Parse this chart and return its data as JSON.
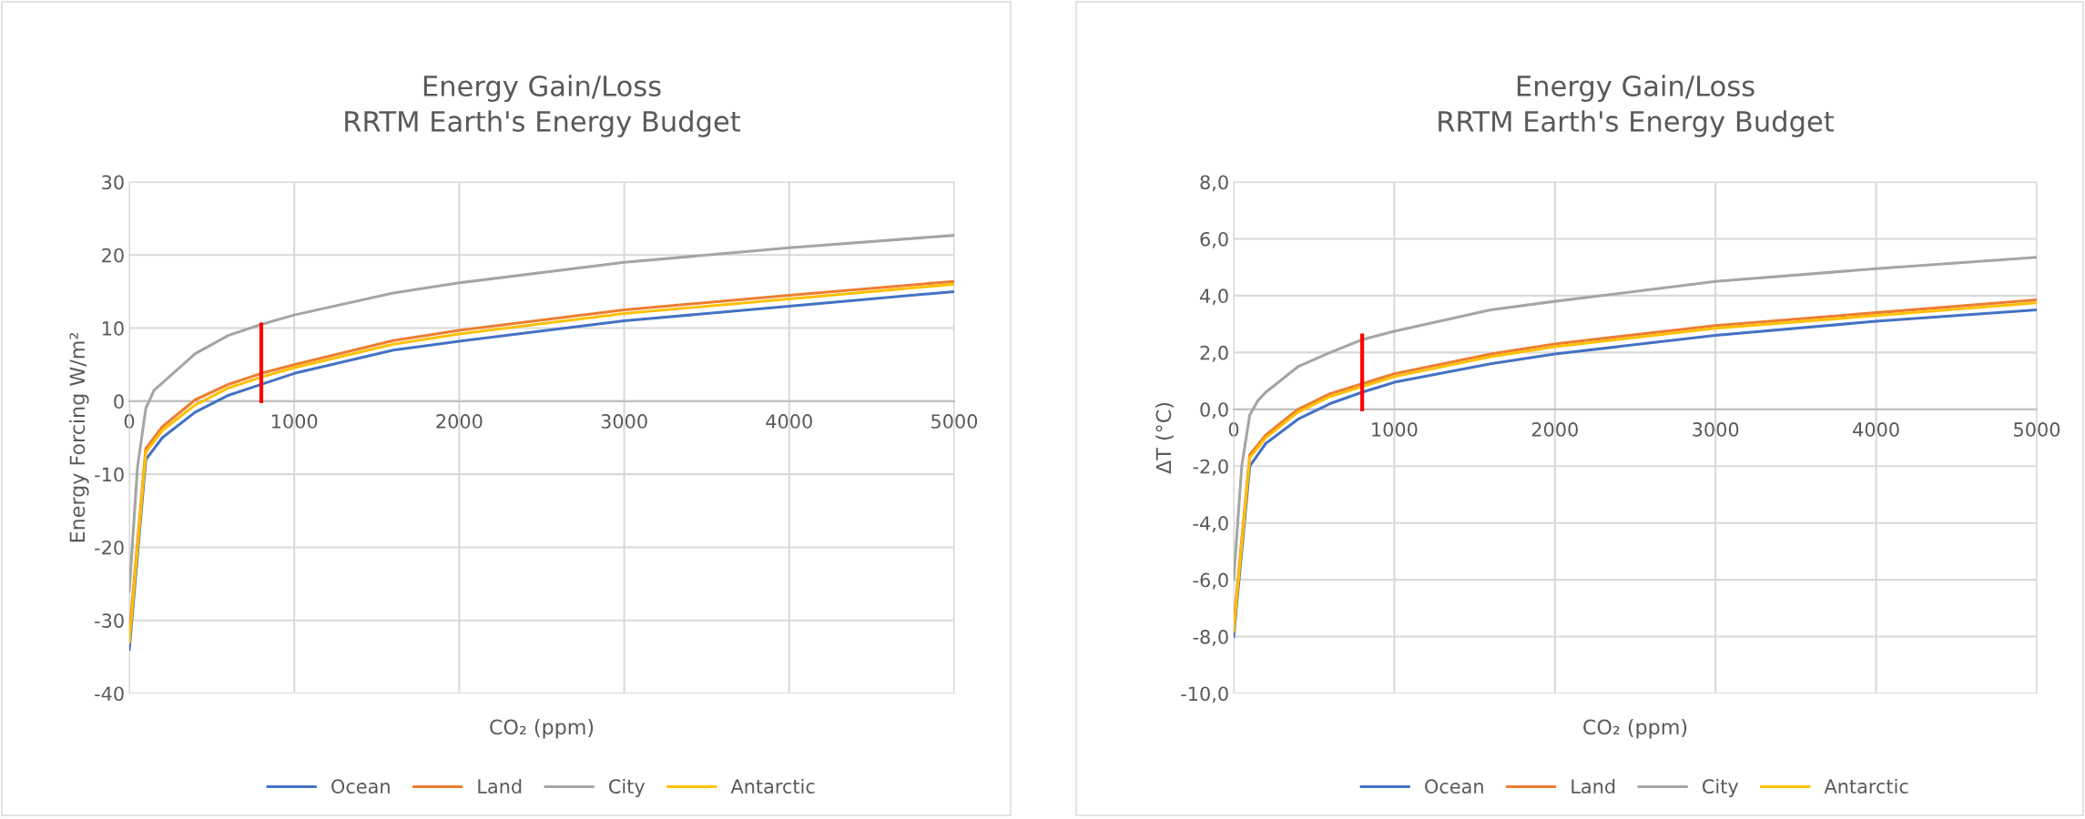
{
  "chart_data": [
    {
      "type": "line",
      "title": "Energy Gain/Loss\nRRTM Earth's Energy Budget",
      "xlabel": "CO₂ (ppm)",
      "ylabel": "Energy Forcing W/m²",
      "xlim": [
        0,
        5000
      ],
      "xticks": [
        0,
        1000,
        2000,
        3000,
        4000,
        5000
      ],
      "ylim": [
        -40,
        30
      ],
      "yticks": [
        -40,
        -30,
        -20,
        -10,
        0,
        10,
        20,
        30
      ],
      "grid": true,
      "legend": "bottom",
      "marker": "none",
      "line_style": "solid",
      "series": [
        {
          "name": "Ocean",
          "color": "#4472c4",
          "x": [
            0,
            100,
            200,
            400,
            600,
            800,
            1000,
            1600,
            2000,
            3000,
            4000,
            5000
          ],
          "values": [
            -34,
            -8,
            -5,
            -1.5,
            0.8,
            2.3,
            3.8,
            7,
            8.2,
            11,
            13,
            15
          ]
        },
        {
          "name": "Land",
          "color": "#ed7d31",
          "x": [
            0,
            100,
            200,
            400,
            600,
            800,
            1000,
            1600,
            2000,
            3000,
            4000,
            5000
          ],
          "values": [
            -32,
            -6.5,
            -3.5,
            0.2,
            2.3,
            3.8,
            5,
            8.3,
            9.7,
            12.5,
            14.5,
            16.4
          ]
        },
        {
          "name": "City",
          "color": "#a5a5a5",
          "x": [
            0,
            50,
            100,
            150,
            200,
            400,
            600,
            800,
            1000,
            1600,
            2000,
            3000,
            4000,
            5000
          ],
          "values": [
            -26,
            -9,
            -1,
            1.5,
            2.5,
            6.5,
            9,
            10.5,
            11.8,
            14.8,
            16.2,
            19,
            21,
            22.7
          ]
        },
        {
          "name": "Antarctic",
          "color": "#ffc000",
          "x": [
            0,
            100,
            200,
            400,
            600,
            800,
            1000,
            1600,
            2000,
            3000,
            4000,
            5000
          ],
          "values": [
            -33,
            -7,
            -4,
            -0.5,
            1.8,
            3.3,
            4.6,
            7.8,
            9.2,
            12,
            14,
            16
          ]
        },
        {
          "type": "line",
          "color": "#ff0000",
          "x": [
            800,
            800
          ],
          "values": [
            0,
            10.5
          ]
        }
      ]
    },
    {
      "type": "line",
      "title": "Energy Gain/Loss\nRRTM Earth's Energy Budget",
      "xlabel": "CO₂ (ppm)",
      "ylabel": "ΔT (°C)",
      "xlim": [
        0,
        5000
      ],
      "xticks": [
        0,
        1000,
        2000,
        3000,
        4000,
        5000
      ],
      "ylim": [
        -10,
        8
      ],
      "yticks": [
        {
          "value": -10,
          "label": "-10,0"
        },
        {
          "value": -8,
          "label": "-8,0"
        },
        {
          "value": -6,
          "label": "-6,0"
        },
        {
          "value": -4,
          "label": "-4,0"
        },
        {
          "value": -2,
          "label": "-2,0"
        },
        {
          "value": 0,
          "label": "0,0"
        },
        {
          "value": 2,
          "label": "2,0"
        },
        {
          "value": 4,
          "label": "4,0"
        },
        {
          "value": 6,
          "label": "6,0"
        },
        {
          "value": 8,
          "label": "8,0"
        }
      ],
      "grid": true,
      "legend": "bottom",
      "marker": "none",
      "line_style": "solid",
      "series": [
        {
          "name": "Ocean",
          "color": "#4472c4",
          "x": [
            0,
            100,
            200,
            400,
            600,
            800,
            1000,
            1600,
            2000,
            3000,
            4000,
            5000
          ],
          "values": [
            -8,
            -2,
            -1.2,
            -0.35,
            0.2,
            0.6,
            0.95,
            1.6,
            1.95,
            2.6,
            3.1,
            3.5
          ]
        },
        {
          "name": "Land",
          "color": "#ed7d31",
          "x": [
            0,
            100,
            200,
            400,
            600,
            800,
            1000,
            1600,
            2000,
            3000,
            4000,
            5000
          ],
          "values": [
            -7.6,
            -1.6,
            -0.9,
            0.0,
            0.55,
            0.9,
            1.25,
            1.95,
            2.3,
            2.95,
            3.4,
            3.85
          ]
        },
        {
          "name": "City",
          "color": "#a5a5a5",
          "x": [
            0,
            50,
            100,
            150,
            200,
            400,
            600,
            800,
            1000,
            1600,
            2000,
            3000,
            4000,
            5000
          ],
          "values": [
            -6,
            -2,
            -0.2,
            0.3,
            0.6,
            1.5,
            2.0,
            2.45,
            2.75,
            3.5,
            3.8,
            4.5,
            4.95,
            5.35
          ]
        },
        {
          "name": "Antarctic",
          "color": "#ffc000",
          "x": [
            0,
            100,
            200,
            400,
            600,
            800,
            1000,
            1600,
            2000,
            3000,
            4000,
            5000
          ],
          "values": [
            -7.8,
            -1.7,
            -1.0,
            -0.1,
            0.45,
            0.8,
            1.15,
            1.85,
            2.2,
            2.85,
            3.3,
            3.75
          ]
        },
        {
          "type": "line",
          "color": "#ff0000",
          "x": [
            800,
            800
          ],
          "values": [
            0,
            2.6
          ]
        }
      ]
    }
  ]
}
